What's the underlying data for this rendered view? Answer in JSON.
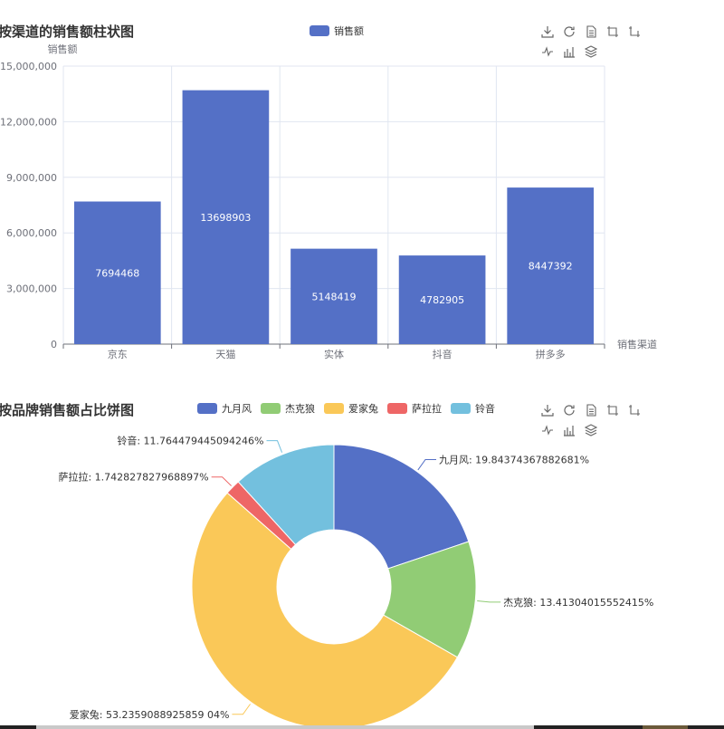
{
  "colors": {
    "bar": "#5470c6",
    "axis": "#6e7079",
    "grid": "#e0e6f1",
    "title": "#333333",
    "label": "#ffffff",
    "series_palette": [
      "#5470c6",
      "#91cc75",
      "#fac858",
      "#ee6666",
      "#73c0de"
    ]
  },
  "toolbox_icons": [
    "download-icon",
    "refresh-icon",
    "data-view-icon",
    "zoom-icon",
    "zoom-reset-icon",
    "line-chart-icon",
    "bar-chart-icon",
    "stack-icon"
  ],
  "chart_data": [
    {
      "type": "bar",
      "title": "按渠道的销售额柱状图",
      "legend": [
        "销售额"
      ],
      "legend_position": "top-center",
      "ylabel": "销售额",
      "xlabel": "销售渠道",
      "ylim": [
        0,
        15000000
      ],
      "yticks": [
        "0",
        "3,000,000",
        "6,000,000",
        "9,000,000",
        "12,000,000",
        "15,000,000"
      ],
      "ytick_values": [
        0,
        3000000,
        6000000,
        9000000,
        12000000,
        15000000
      ],
      "categories": [
        "京东",
        "天猫",
        "实体",
        "抖音",
        "拼多多"
      ],
      "series": [
        {
          "name": "销售额",
          "values": [
            7694468,
            13698903,
            5148419,
            4782905,
            8447392
          ],
          "labels": [
            "7694468",
            "13698903",
            "5148419",
            "4782905",
            "8447392"
          ]
        }
      ],
      "grid": true
    },
    {
      "type": "pie",
      "title": "按品牌销售额占比饼图",
      "legend": [
        "九月风",
        "杰克狼",
        "爱家兔",
        "萨拉拉",
        "铃音"
      ],
      "legend_position": "top-center",
      "donut": true,
      "slices": [
        {
          "name": "九月风",
          "value": 19.84374367882681,
          "label": "九月风: 19.84374367882681%"
        },
        {
          "name": "杰克狼",
          "value": 13.41304015552415,
          "label": "杰克狼: 13.41304015552415%"
        },
        {
          "name": "爱家兔",
          "value": 53.2359088925859,
          "label": "爱家兔: 53.2359088925859 04%"
        },
        {
          "name": "萨拉拉",
          "value": 1.742827827968897,
          "label": "萨拉拉: 1.742827827968897%"
        },
        {
          "name": "铃音",
          "value": 11.764479445094246,
          "label": "铃音: 11.764479445094246%"
        }
      ]
    }
  ]
}
